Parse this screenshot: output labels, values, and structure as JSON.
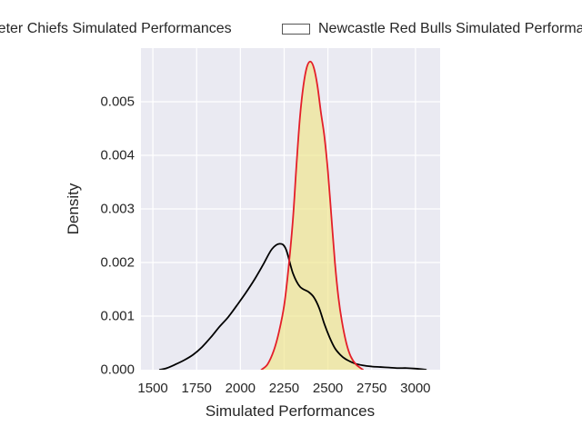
{
  "legend": {
    "entries": [
      {
        "label": "Exeter Chiefs Simulated Performances",
        "swatch_face": "#ffffff",
        "swatch_edge": "#555555"
      },
      {
        "label": "Newcastle Red Bulls Simulated Performances",
        "swatch_face": "#ffffff",
        "swatch_edge": "#555555"
      }
    ]
  },
  "chart_data": {
    "type": "area",
    "subtype": "kde-density",
    "xlabel": "Simulated Performances",
    "ylabel": "Density",
    "xlim": [
      1432,
      3141
    ],
    "ylim": [
      0,
      0.006
    ],
    "grid": true,
    "legend_position": "top-center-clipped",
    "x_tick_values": [
      1500,
      1750,
      2000,
      2250,
      2500,
      2750,
      3000
    ],
    "x_tick_labels": [
      "1500",
      "1750",
      "2000",
      "2250",
      "2500",
      "2750",
      "3000"
    ],
    "y_tick_values": [
      0,
      0.001,
      0.002,
      0.003,
      0.004,
      0.005
    ],
    "y_tick_labels": [
      "0.000",
      "0.001",
      "0.002",
      "0.003",
      "0.004",
      "0.005"
    ],
    "colors": {
      "plot_bg": "#eaeaf2",
      "grid": "#ffffff",
      "fig_bg": "#ffffff",
      "text": "#262626",
      "exeter_line": "#000000",
      "newcastle_line": "#e41f29",
      "newcastle_fill": "rgba(240,230,140,0.68)"
    },
    "series": [
      {
        "name": "Exeter Chiefs Simulated Performances",
        "color": "#000000",
        "fill": "none",
        "peak": {
          "x": 2225,
          "y": 0.00235
        },
        "x": [
          1540,
          1580,
          1630,
          1680,
          1730,
          1780,
          1830,
          1880,
          1930,
          1980,
          2030,
          2080,
          2130,
          2180,
          2225,
          2260,
          2300,
          2340,
          2390,
          2420,
          2450,
          2480,
          2510,
          2540,
          2570,
          2600,
          2650,
          2700,
          2750,
          2800,
          2850,
          2900,
          2950,
          3000,
          3060
        ],
        "y": [
          0,
          3e-05,
          0.0001,
          0.00018,
          0.00028,
          0.00042,
          0.0006,
          0.0008,
          0.00098,
          0.0012,
          0.00143,
          0.00168,
          0.00196,
          0.00225,
          0.00235,
          0.00225,
          0.0018,
          0.00155,
          0.00145,
          0.00135,
          0.00115,
          0.00085,
          0.0006,
          0.0004,
          0.00028,
          0.0002,
          0.00012,
          8e-05,
          6e-05,
          5e-05,
          4e-05,
          3e-05,
          3e-05,
          2e-05,
          0
        ]
      },
      {
        "name": "Newcastle Red Bulls Simulated Performances",
        "color": "#e41f29",
        "fill": "rgba(240,230,140,0.68)",
        "peak": {
          "x": 2400,
          "y": 0.00575
        },
        "x": [
          2120,
          2155,
          2190,
          2220,
          2250,
          2275,
          2300,
          2320,
          2340,
          2360,
          2380,
          2400,
          2420,
          2440,
          2460,
          2480,
          2500,
          2520,
          2540,
          2560,
          2580,
          2605,
          2630,
          2660,
          2700
        ],
        "y": [
          0,
          0.0001,
          0.00035,
          0.0007,
          0.0012,
          0.0019,
          0.0028,
          0.0038,
          0.0047,
          0.0053,
          0.00565,
          0.00575,
          0.00563,
          0.0053,
          0.0048,
          0.00435,
          0.0037,
          0.00285,
          0.002,
          0.00135,
          0.0009,
          0.0005,
          0.00025,
          0.0001,
          0
        ]
      }
    ]
  }
}
